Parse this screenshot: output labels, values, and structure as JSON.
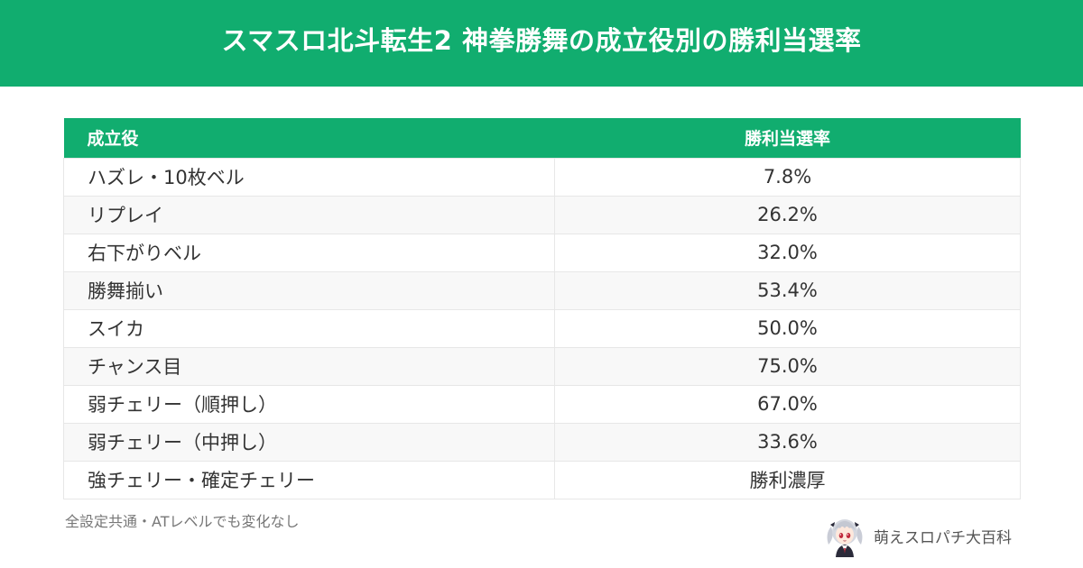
{
  "header": {
    "title": "スマスロ北斗転生2 神拳勝舞の成立役別の勝利当選率"
  },
  "table": {
    "columns": [
      "成立役",
      "勝利当選率"
    ],
    "rows": [
      {
        "role": "ハズレ・10枚ベル",
        "rate": "7.8%"
      },
      {
        "role": "リプレイ",
        "rate": "26.2%"
      },
      {
        "role": "右下がりベル",
        "rate": "32.0%"
      },
      {
        "role": "勝舞揃い",
        "rate": "53.4%"
      },
      {
        "role": "スイカ",
        "rate": "50.0%"
      },
      {
        "role": "チャンス目",
        "rate": "75.0%"
      },
      {
        "role": "弱チェリー（順押し）",
        "rate": "67.0%"
      },
      {
        "role": "弱チェリー（中押し）",
        "rate": "33.6%"
      },
      {
        "role": "強チェリー・確定チェリー",
        "rate": "勝利濃厚"
      }
    ]
  },
  "footer": {
    "note": "全設定共通・ATレベルでも変化なし",
    "brand": "萌えスロパチ大百科",
    "avatar_icon": "anime-girl-avatar-icon"
  },
  "colors": {
    "accent": "#11ad6f",
    "row_alt": "#f8f8f8",
    "border": "#e7e7e7"
  }
}
